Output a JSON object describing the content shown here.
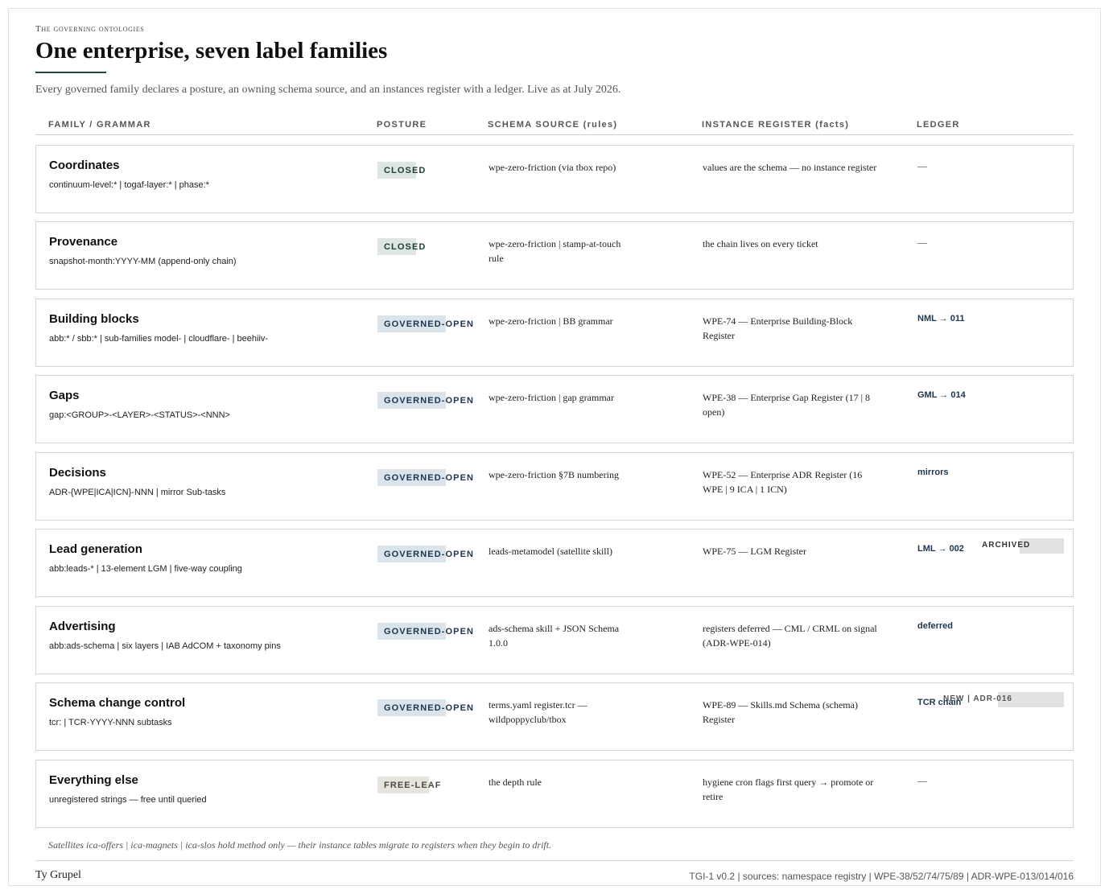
{
  "header": {
    "eyebrow": "The governing ontologies",
    "title": "One enterprise, seven label families",
    "lede": "Every governed family declares a posture, an owning schema source, and an instances register with a ledger. Live as at July 2026."
  },
  "columns": {
    "family": "FAMILY / GRAMMAR",
    "posture": "POSTURE",
    "schema": "SCHEMA SOURCE (rules)",
    "instance": "INSTANCE REGISTER (facts)",
    "ledger": "LEDGER"
  },
  "rows": [
    {
      "name": "Coordinates",
      "grammar": "continuum-level:* | togaf-layer:* | phase:*",
      "posture": "CLOSED",
      "schema": "wpe-zero-friction (via tbox repo)",
      "instance": "values are the schema — no instance register",
      "ledger": "—"
    },
    {
      "name": "Provenance",
      "grammar": "snapshot-month:YYYY-MM (append-only chain)",
      "posture": "CLOSED",
      "schema": "wpe-zero-friction | stamp-at-touch rule",
      "instance": "the chain lives on every ticket",
      "ledger": "—"
    },
    {
      "name": "Building blocks",
      "grammar": "abb:* / sbb:* | sub-families model- | cloudflare- | beehiiv-",
      "posture": "GOVERNED-OPEN",
      "schema": "wpe-zero-friction | BB grammar",
      "instance": "WPE-74 — Enterprise Building-Block Register",
      "ledger": "NML → 011"
    },
    {
      "name": "Gaps",
      "grammar": "gap:<GROUP>-<LAYER>-<STATUS>-<NNN>",
      "posture": "GOVERNED-OPEN",
      "schema": "wpe-zero-friction | gap grammar",
      "instance": "WPE-38 — Enterprise Gap Register (17 | 8 open)",
      "ledger": "GML → 014"
    },
    {
      "name": "Decisions",
      "grammar": "ADR-{WPE|ICA|ICN}-NNN | mirror Sub-tasks",
      "posture": "GOVERNED-OPEN",
      "schema": "wpe-zero-friction §7B numbering",
      "instance": "WPE-52 — Enterprise ADR Register (16 WPE | 9 ICA | 1 ICN)",
      "ledger": "mirrors"
    },
    {
      "name": "Lead generation",
      "grammar": "abb:leads-* | 13-element LGM | five-way coupling",
      "posture": "GOVERNED-OPEN",
      "schema": "leads-metamodel (satellite skill)",
      "instance": "WPE-75 — LGM Register",
      "ledger": "LML → 002",
      "tag": "ARCHIVED"
    },
    {
      "name": "Advertising",
      "grammar": "abb:ads-schema | six layers | IAB AdCOM + taxonomy pins",
      "posture": "GOVERNED-OPEN",
      "schema": "ads-schema skill + JSON Schema 1.0.0",
      "instance": "registers deferred — CML / CRML on signal (ADR-WPE-014)",
      "ledger": "deferred"
    },
    {
      "name": "Schema change control",
      "grammar": "tcr: | TCR-YYYY-NNN subtasks",
      "posture": "GOVERNED-OPEN",
      "schema": "terms.yaml register.tcr — wildpoppyclub/tbox",
      "instance": "WPE-89 — Skills.md Schema (schema) Register",
      "ledger": "TCR chain",
      "tag": "NEW | ADR-016"
    },
    {
      "name": "Everything else",
      "grammar": "unregistered strings — free until queried",
      "posture": "FREE-LEAF",
      "schema": "the depth rule",
      "instance": "hygiene cron flags first query → promote or retire",
      "ledger": "—"
    }
  ],
  "footnote": "Satellites ica-offers | ica-magnets | ica-slos hold method only — their instance tables migrate to registers when they begin to drift.",
  "footer": {
    "author": "Ty Grupel",
    "meta": "TGI-1 v0.2 | sources: namespace registry | WPE-38/52/74/75/89 | ADR-WPE-013/014/016"
  }
}
